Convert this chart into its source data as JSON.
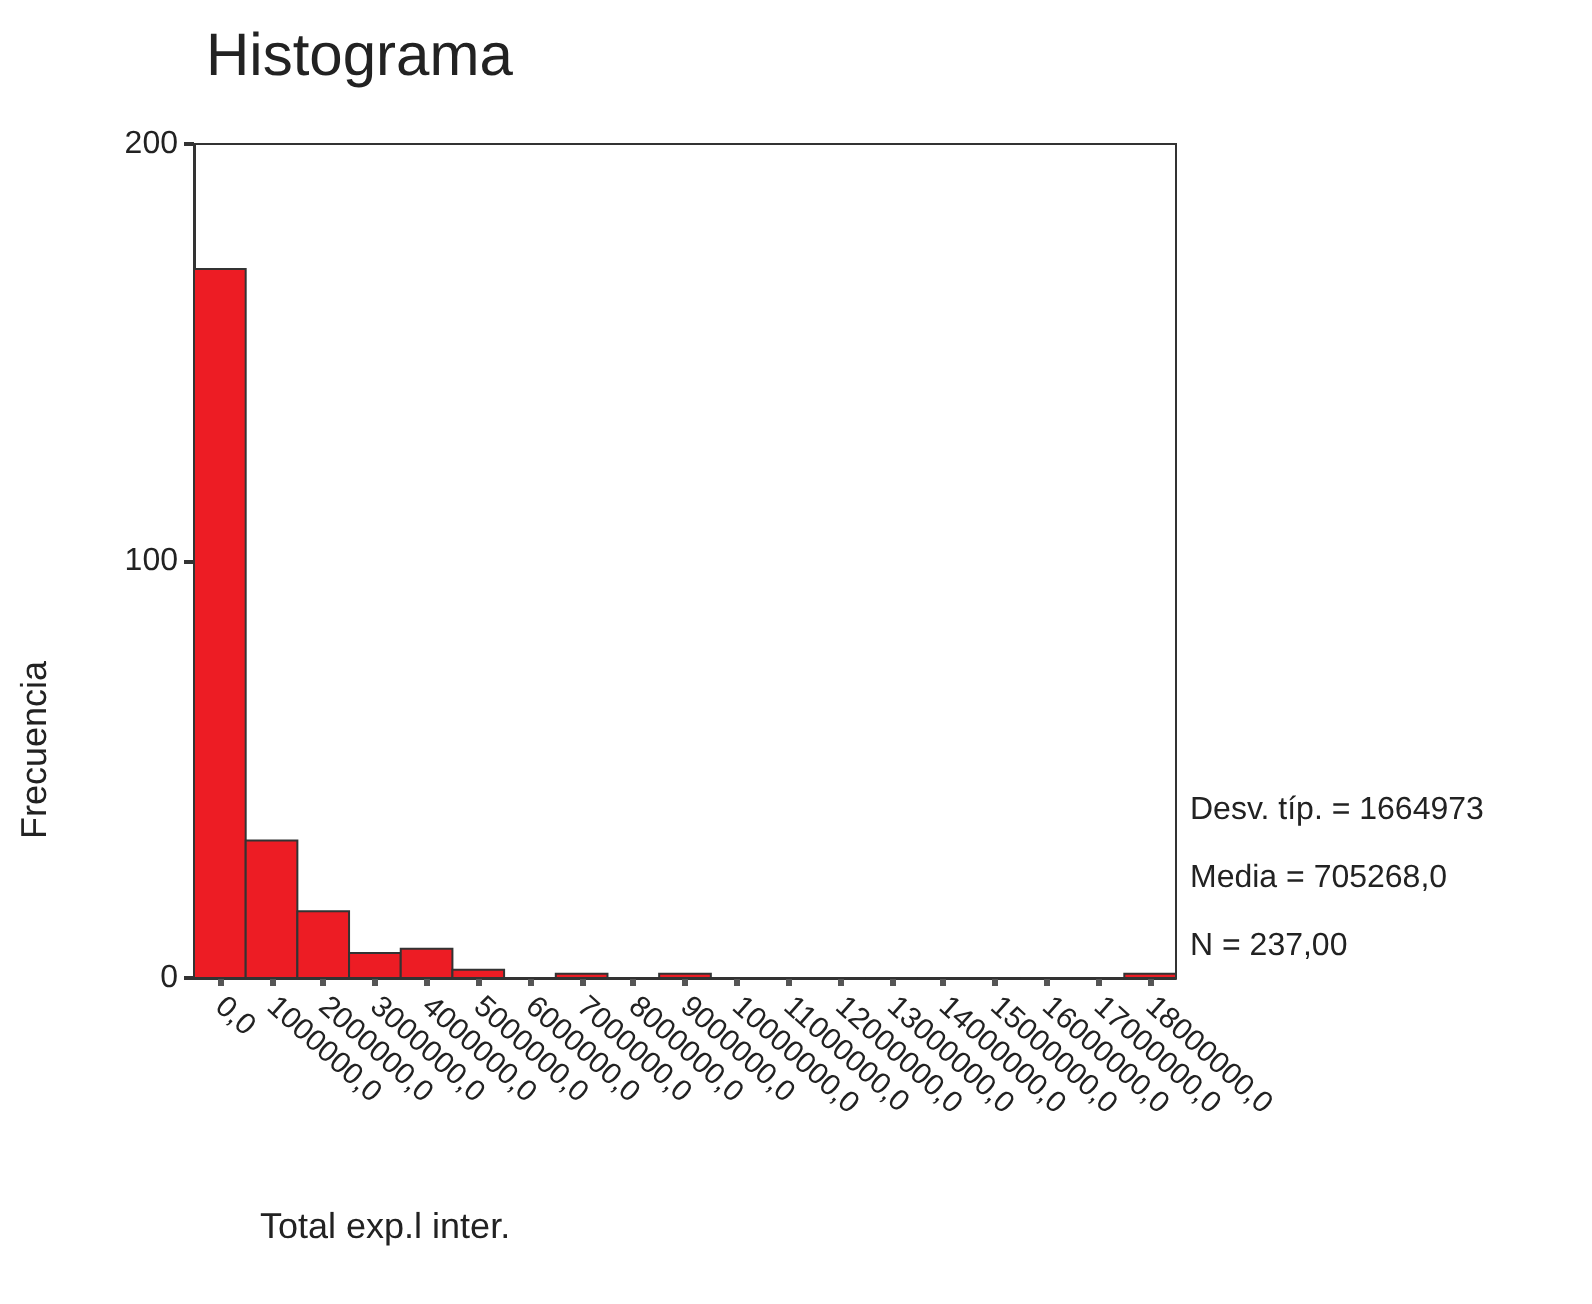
{
  "chart_data": {
    "type": "histogram",
    "title": "Histograma",
    "xlabel": "Total exp.l inter.",
    "ylabel": "Frecuencia",
    "bins": [
      -500000,
      500000,
      1500000,
      2500000,
      3500000,
      4500000,
      5500000,
      6500000,
      7500000,
      8500000,
      9500000,
      10500000,
      11500000,
      12500000,
      13500000,
      14500000,
      15500000,
      16500000,
      17500000,
      18500000
    ],
    "values": [
      170,
      33,
      16,
      6,
      7,
      2,
      0,
      1,
      0,
      1,
      0,
      0,
      0,
      0,
      0,
      0,
      0,
      0,
      1
    ],
    "color": "#ed1c24",
    "xlim": [
      -500000,
      18500000
    ],
    "xticks": [
      {
        "value": 0,
        "label": "0,0"
      },
      {
        "value": 1000000,
        "label": "1000000,0"
      },
      {
        "value": 2000000,
        "label": "2000000,0"
      },
      {
        "value": 3000000,
        "label": "3000000,0"
      },
      {
        "value": 4000000,
        "label": "4000000,0"
      },
      {
        "value": 5000000,
        "label": "5000000,0"
      },
      {
        "value": 6000000,
        "label": "6000000,0"
      },
      {
        "value": 7000000,
        "label": "7000000,0"
      },
      {
        "value": 8000000,
        "label": "8000000,0"
      },
      {
        "value": 9000000,
        "label": "9000000,0"
      },
      {
        "value": 10000000,
        "label": "10000000,0"
      },
      {
        "value": 11000000,
        "label": "11000000,0"
      },
      {
        "value": 12000000,
        "label": "12000000,0"
      },
      {
        "value": 13000000,
        "label": "13000000,0"
      },
      {
        "value": 14000000,
        "label": "14000000,0"
      },
      {
        "value": 15000000,
        "label": "15000000,0"
      },
      {
        "value": 16000000,
        "label": "16000000,0"
      },
      {
        "value": 17000000,
        "label": "17000000,0"
      },
      {
        "value": 18000000,
        "label": "18000000,0"
      }
    ],
    "ylim": [
      0,
      200
    ],
    "yticks": [
      0,
      100,
      200
    ],
    "grid": false,
    "annotations": [
      "Desv. típ. = 1664973",
      "Media = 705268,0",
      "N = 237,00"
    ]
  }
}
